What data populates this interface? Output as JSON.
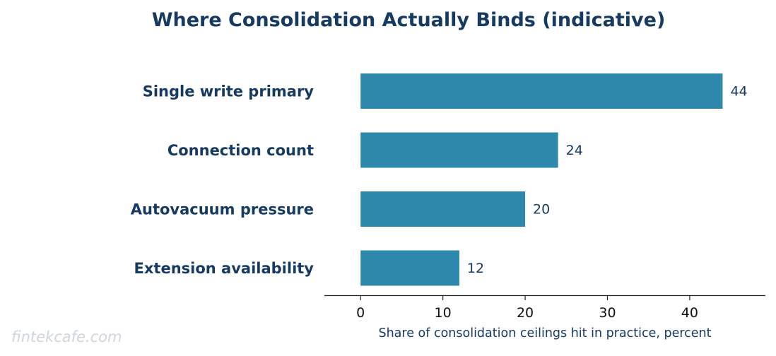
{
  "chart_data": {
    "type": "bar",
    "orientation": "horizontal",
    "title": "Where Consolidation Actually Binds (indicative)",
    "categories": [
      "Single write primary",
      "Connection count",
      "Autovacuum pressure",
      "Extension availability"
    ],
    "values": [
      44,
      24,
      20,
      12
    ],
    "value_labels": [
      "44",
      "24",
      "20",
      "12"
    ],
    "xlabel": "Share of consolidation ceilings hit in practice, percent",
    "ylabel": "",
    "xlim": [
      -4.4,
      49.2
    ],
    "xticks": [
      0,
      10,
      20,
      30,
      40
    ],
    "grid": false,
    "colors": {
      "bar": "#2e88ac",
      "text": "#163a62"
    }
  },
  "watermark": "fintekcafe.com"
}
